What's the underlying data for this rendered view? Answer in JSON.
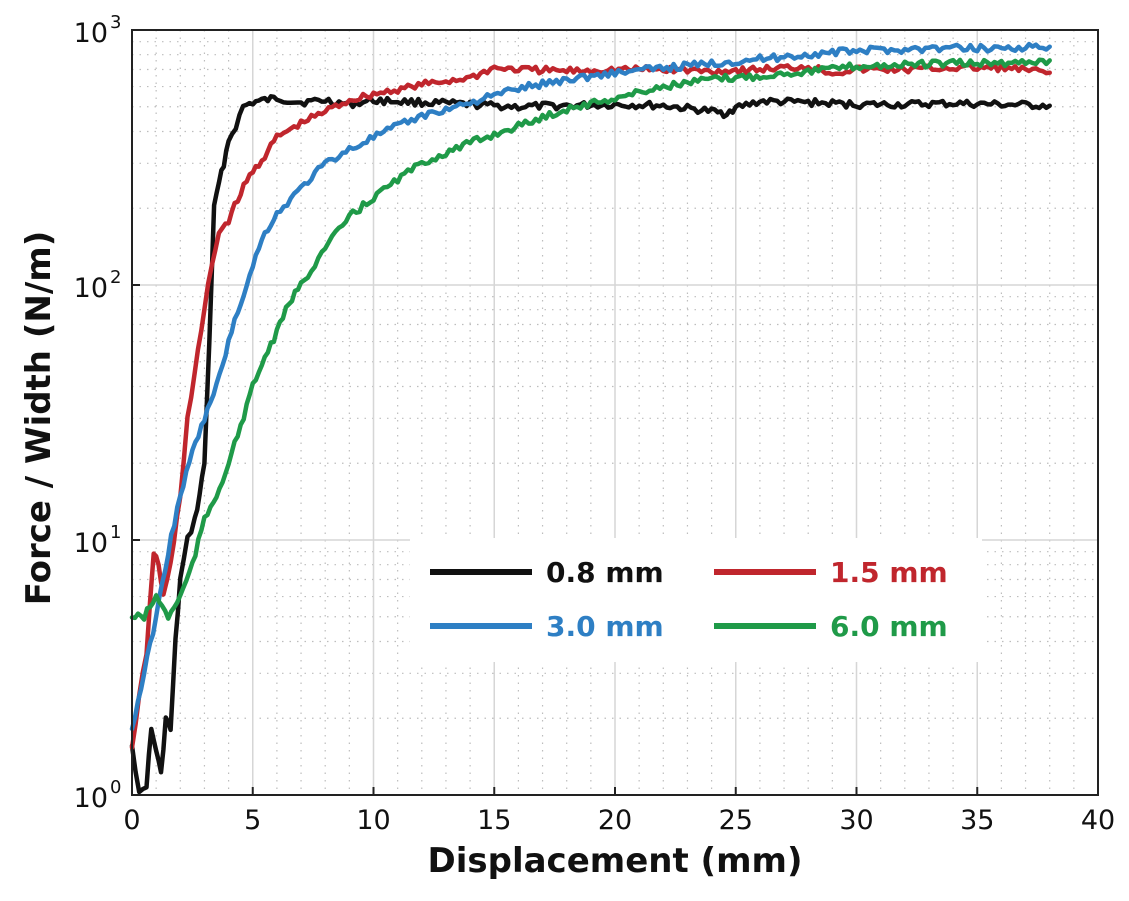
{
  "chart_data": {
    "type": "line",
    "title": "",
    "xlabel": "Displacement (mm)",
    "ylabel": "Force / Width (N/m)",
    "xlim": [
      0,
      40
    ],
    "ylim": [
      1,
      1000
    ],
    "yscale": "log",
    "grid": true,
    "legend_position": "lower-right",
    "x_ticks": [
      "0",
      "5",
      "10",
      "15",
      "20",
      "25",
      "30",
      "35",
      "40"
    ],
    "y_ticks": [
      {
        "base": "10",
        "exp": "0"
      },
      {
        "base": "10",
        "exp": "1"
      },
      {
        "base": "10",
        "exp": "2"
      },
      {
        "base": "10",
        "exp": "3"
      }
    ],
    "series": [
      {
        "name": "0.8 mm",
        "color": "#111111",
        "x": [
          0,
          0.3,
          0.6,
          0.8,
          1.0,
          1.2,
          1.4,
          1.6,
          1.8,
          2.0,
          2.3,
          2.6,
          2.8,
          3.0,
          3.2,
          3.4,
          3.6,
          3.8,
          4.0,
          4.3,
          4.6,
          5.0,
          5.5,
          6,
          7,
          8,
          9,
          10,
          12,
          14,
          16,
          18,
          20,
          22,
          24,
          24.5,
          25,
          26,
          28,
          30,
          32,
          34,
          36,
          38
        ],
        "y": [
          1.6,
          1.0,
          1.1,
          1.8,
          1.5,
          1.2,
          2.0,
          1.8,
          4.0,
          7,
          10,
          12,
          15,
          20,
          60,
          200,
          250,
          300,
          370,
          420,
          500,
          520,
          530,
          540,
          520,
          530,
          510,
          530,
          520,
          510,
          500,
          505,
          510,
          505,
          480,
          470,
          495,
          525,
          520,
          510,
          510,
          515,
          510,
          505
        ]
      },
      {
        "name": "1.5 mm",
        "color": "#c0262d",
        "x": [
          0,
          0.3,
          0.6,
          0.9,
          1.1,
          1.3,
          1.6,
          2.0,
          2.3,
          2.6,
          3.0,
          3.3,
          3.6,
          4.0,
          4.5,
          5.0,
          5.5,
          6,
          7,
          8,
          9,
          10,
          12,
          14,
          15,
          16,
          18,
          20,
          22,
          24,
          26,
          28,
          29,
          30,
          32,
          34,
          36,
          38
        ],
        "y": [
          1.5,
          2.5,
          3.5,
          9,
          8,
          6,
          8,
          15,
          30,
          45,
          80,
          120,
          160,
          180,
          230,
          280,
          320,
          380,
          430,
          480,
          530,
          560,
          610,
          650,
          710,
          700,
          690,
          700,
          700,
          690,
          700,
          720,
          680,
          700,
          700,
          710,
          710,
          680
        ]
      },
      {
        "name": "3.0 mm",
        "color": "#2e7fc4",
        "x": [
          0,
          0.5,
          1.0,
          1.5,
          2.0,
          2.5,
          3.0,
          3.5,
          4.0,
          4.5,
          5.0,
          5.5,
          6,
          7,
          8,
          9,
          10,
          11,
          12,
          14,
          16,
          18,
          20,
          22,
          24,
          26,
          28,
          30,
          32,
          34,
          36,
          38
        ],
        "y": [
          1.8,
          3,
          5,
          9,
          15,
          22,
          30,
          40,
          60,
          85,
          120,
          160,
          190,
          240,
          300,
          340,
          380,
          420,
          460,
          520,
          590,
          640,
          680,
          710,
          740,
          770,
          800,
          830,
          840,
          850,
          850,
          860
        ]
      },
      {
        "name": "6.0 mm",
        "color": "#1f9a48",
        "x": [
          0,
          0.5,
          1.0,
          1.5,
          2.0,
          2.5,
          3.0,
          3.5,
          4.0,
          4.5,
          5.0,
          5.5,
          6,
          6.5,
          7,
          8,
          9,
          10,
          11,
          12,
          13,
          14,
          15,
          16,
          18,
          20,
          22,
          24,
          26,
          28,
          30,
          32,
          34,
          36,
          38
        ],
        "y": [
          5,
          5,
          6,
          5,
          6,
          8,
          12,
          15,
          20,
          28,
          40,
          52,
          65,
          85,
          100,
          140,
          185,
          220,
          260,
          300,
          330,
          360,
          390,
          420,
          490,
          540,
          600,
          640,
          660,
          690,
          720,
          730,
          740,
          740,
          760
        ]
      }
    ]
  }
}
